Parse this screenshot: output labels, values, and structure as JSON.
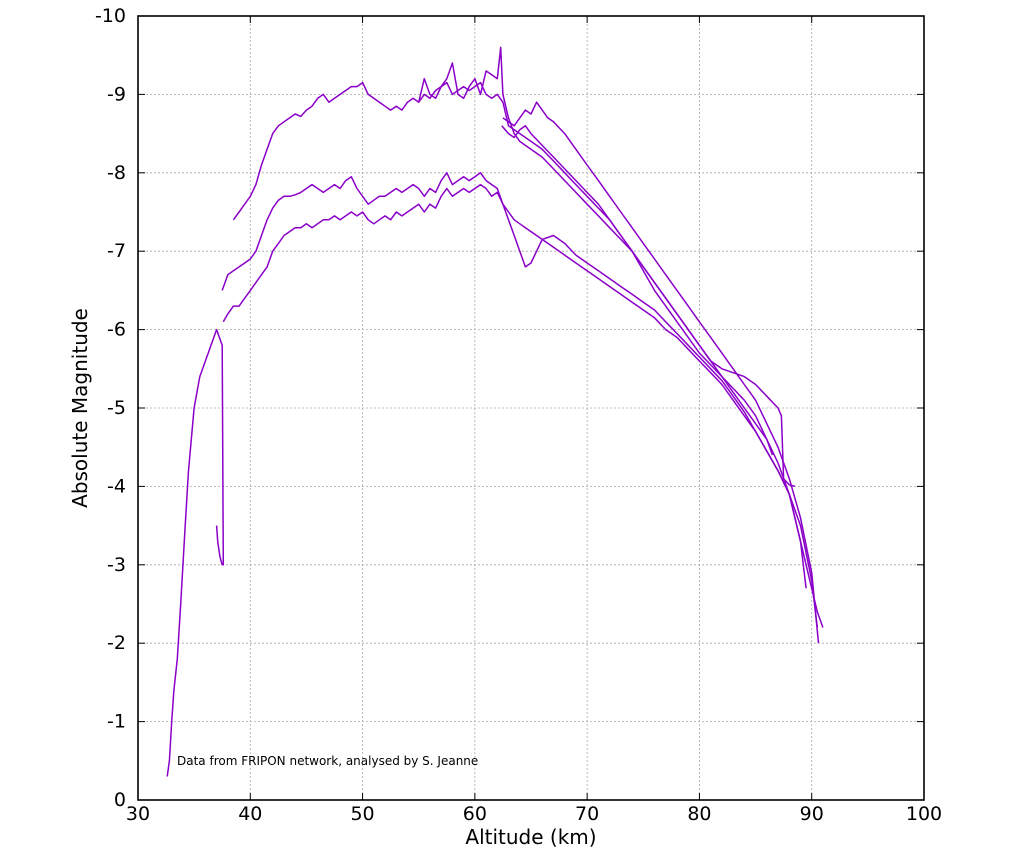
{
  "chart_data": {
    "type": "line",
    "title": "",
    "xlabel": "Altitude (km)",
    "ylabel": "Absolute Magnitude",
    "xlim": [
      30,
      100
    ],
    "ylim": [
      0,
      -10
    ],
    "x_ticks": [
      30,
      40,
      50,
      60,
      70,
      80,
      90,
      100
    ],
    "y_ticks": [
      0,
      -1,
      -2,
      -3,
      -4,
      -5,
      -6,
      -7,
      -8,
      -9,
      -10
    ],
    "x_tick_labels": [
      "30",
      "40",
      "50",
      "60",
      "70",
      "80",
      "90",
      "100"
    ],
    "y_tick_labels": [
      "0",
      "-1",
      "-2",
      "-3",
      "-4",
      "-5",
      "-6",
      "-7",
      "-8",
      "-9",
      "-10"
    ],
    "grid": true,
    "line_color": "#8b00c9",
    "annotation": "Data from FRIPON network, analysed by S. Jeanne",
    "series": [
      {
        "x": [
          32.6,
          32.8,
          33.0,
          33.2,
          33.5,
          33.8,
          34.2,
          34.5,
          35.0,
          35.5,
          36.0,
          36.5,
          37.0,
          37.5,
          37.6,
          37.5,
          37.3,
          37.1,
          37.0
        ],
        "y": [
          -0.3,
          -0.5,
          -1.0,
          -1.4,
          -1.8,
          -2.5,
          -3.5,
          -4.2,
          -5.0,
          -5.4,
          -5.6,
          -5.8,
          -6.0,
          -5.8,
          -3.0,
          -3.0,
          -3.1,
          -3.3,
          -3.5
        ]
      },
      {
        "x": [
          37.6,
          38.0,
          38.5,
          39.0,
          39.5,
          40.0,
          40.5,
          41.0,
          41.5,
          42.0,
          42.5,
          43.0,
          43.5,
          44.0,
          44.5,
          45.0,
          45.5,
          46.0,
          46.5,
          47.0,
          47.5,
          48.0,
          48.5,
          49.0,
          49.5,
          50.0,
          50.5,
          51.0,
          51.5,
          52.0,
          52.5,
          53.0,
          53.5,
          54.0,
          54.5,
          55.0,
          55.5,
          56.0,
          56.5,
          57.0,
          57.5,
          58.0,
          58.5,
          59.0,
          59.5,
          60.0,
          60.5,
          61.0,
          61.5,
          62.0,
          62.5,
          63.0,
          63.5,
          64.0,
          64.5,
          65.0,
          66.0,
          67.0,
          68.0,
          69.0,
          70.0,
          71.0,
          72.0,
          73.0,
          74.0,
          75.0,
          76.0,
          77.0,
          78.0,
          79.0,
          80.0,
          81.0,
          82.0,
          83.0,
          84.0,
          85.0,
          86.0,
          87.0,
          88.0,
          88.5,
          89.0,
          89.5,
          90.0,
          90.5,
          91.0
        ],
        "y": [
          -6.1,
          -6.2,
          -6.3,
          -6.3,
          -6.4,
          -6.5,
          -6.6,
          -6.7,
          -6.8,
          -7.0,
          -7.1,
          -7.2,
          -7.25,
          -7.3,
          -7.3,
          -7.35,
          -7.3,
          -7.35,
          -7.4,
          -7.4,
          -7.45,
          -7.4,
          -7.45,
          -7.5,
          -7.45,
          -7.5,
          -7.4,
          -7.35,
          -7.4,
          -7.45,
          -7.4,
          -7.5,
          -7.45,
          -7.5,
          -7.55,
          -7.6,
          -7.5,
          -7.6,
          -7.55,
          -7.7,
          -7.8,
          -7.7,
          -7.75,
          -7.8,
          -7.75,
          -7.8,
          -7.85,
          -7.8,
          -7.7,
          -7.75,
          -7.6,
          -7.5,
          -7.4,
          -7.35,
          -7.3,
          -7.25,
          -7.15,
          -7.05,
          -6.95,
          -6.85,
          -6.75,
          -6.65,
          -6.55,
          -6.45,
          -6.35,
          -6.25,
          -6.15,
          -6.0,
          -5.9,
          -5.75,
          -5.6,
          -5.45,
          -5.3,
          -5.1,
          -4.9,
          -4.7,
          -4.45,
          -4.2,
          -3.9,
          -3.6,
          -3.3,
          -3.0,
          -2.7,
          -2.4,
          -2.2
        ]
      },
      {
        "x": [
          37.5,
          38.0,
          38.5,
          39.0,
          39.5,
          40.0,
          40.5,
          41.0,
          41.5,
          42.0,
          42.5,
          43.0,
          43.5,
          44.0,
          44.5,
          45.0,
          45.5,
          46.0,
          46.5,
          47.0,
          47.5,
          48.0,
          48.5,
          49.0,
          49.5,
          50.0,
          50.5,
          51.0,
          51.5,
          52.0,
          52.5,
          53.0,
          53.5,
          54.0,
          54.5,
          55.0,
          55.5,
          56.0,
          56.5,
          57.0,
          57.5,
          58.0,
          58.5,
          59.0,
          59.5,
          60.0,
          60.5,
          61.0,
          61.5,
          62.0,
          62.5,
          63.0,
          63.5,
          64.0,
          64.5,
          65.0,
          66.0,
          67.0,
          68.0,
          69.0,
          70.0,
          71.0,
          72.0,
          73.0,
          74.0,
          75.0,
          76.0,
          77.0,
          78.0,
          79.0,
          80.0,
          81.0,
          82.0,
          83.0,
          84.0,
          85.0,
          86.0,
          87.0,
          88.0,
          89.0,
          90.0,
          90.5
        ],
        "y": [
          -6.5,
          -6.7,
          -6.75,
          -6.8,
          -6.85,
          -6.9,
          -7.0,
          -7.2,
          -7.4,
          -7.55,
          -7.65,
          -7.7,
          -7.7,
          -7.72,
          -7.75,
          -7.8,
          -7.85,
          -7.8,
          -7.75,
          -7.8,
          -7.85,
          -7.8,
          -7.9,
          -7.95,
          -7.8,
          -7.7,
          -7.6,
          -7.65,
          -7.7,
          -7.7,
          -7.75,
          -7.8,
          -7.75,
          -7.8,
          -7.85,
          -7.8,
          -7.7,
          -7.8,
          -7.75,
          -7.9,
          -8.0,
          -7.85,
          -7.9,
          -7.95,
          -7.9,
          -7.95,
          -8.0,
          -7.9,
          -7.85,
          -7.8,
          -7.6,
          -7.4,
          -7.2,
          -7.0,
          -6.8,
          -6.85,
          -7.15,
          -7.2,
          -7.1,
          -6.95,
          -6.85,
          -6.75,
          -6.65,
          -6.55,
          -6.45,
          -6.35,
          -6.25,
          -6.1,
          -5.95,
          -5.8,
          -5.65,
          -5.5,
          -5.35,
          -5.15,
          -4.95,
          -4.7,
          -4.45,
          -4.2,
          -3.9,
          -3.5,
          -2.8,
          -2.2
        ]
      },
      {
        "x": [
          38.5,
          39.0,
          39.5,
          40.0,
          40.5,
          41.0,
          41.5,
          42.0,
          42.5,
          43.0,
          43.5,
          44.0,
          44.5,
          45.0,
          45.5,
          46.0,
          46.5,
          47.0,
          47.5,
          48.0,
          48.5,
          49.0,
          49.5,
          50.0,
          50.5,
          51.0,
          51.5,
          52.0,
          52.5,
          53.0,
          53.5,
          54.0,
          54.5,
          55.0,
          55.5,
          56.0,
          56.5,
          57.0,
          57.5,
          58.0,
          58.5,
          59.0,
          59.5,
          60.0,
          60.5,
          61.0,
          61.5,
          62.0,
          62.5,
          63.0,
          63.5,
          64.0,
          64.5,
          65.0,
          66.0,
          67.0,
          68.0,
          69.0,
          70.0,
          71.0,
          72.0,
          73.0,
          74.0,
          75.0,
          76.0,
          77.0,
          78.0,
          79.0,
          80.0,
          81.0,
          82.0,
          83.0,
          84.0,
          85.0,
          86.0,
          86.5
        ],
        "y": [
          -7.4,
          -7.5,
          -7.6,
          -7.7,
          -7.85,
          -8.1,
          -8.3,
          -8.5,
          -8.6,
          -8.65,
          -8.7,
          -8.75,
          -8.72,
          -8.8,
          -8.85,
          -8.95,
          -9.0,
          -8.9,
          -8.95,
          -9.0,
          -9.05,
          -9.1,
          -9.1,
          -9.15,
          -9.0,
          -8.95,
          -8.9,
          -8.85,
          -8.8,
          -8.85,
          -8.8,
          -8.9,
          -8.95,
          -8.9,
          -9.0,
          -8.95,
          -9.05,
          -9.1,
          -9.15,
          -9.0,
          -9.05,
          -9.1,
          -9.05,
          -9.1,
          -9.15,
          -9.0,
          -8.95,
          -9.0,
          -8.9,
          -8.6,
          -8.55,
          -8.5,
          -8.45,
          -8.4,
          -8.3,
          -8.15,
          -8.0,
          -7.85,
          -7.7,
          -7.55,
          -7.4,
          -7.2,
          -7.0,
          -6.8,
          -6.6,
          -6.4,
          -6.2,
          -6.0,
          -5.8,
          -5.6,
          -5.4,
          -5.2,
          -5.0,
          -4.8,
          -4.6,
          -4.4
        ]
      },
      {
        "x": [
          55.0,
          55.5,
          56.0,
          56.5,
          57.0,
          57.5,
          58.0,
          58.5,
          59.0,
          59.5,
          60.0,
          60.5,
          61.0,
          61.5,
          62.0,
          62.3,
          62.5,
          63.0,
          63.5,
          64.0,
          64.5,
          65.0,
          66.0,
          67.0,
          68.0,
          69.0,
          70.0,
          71.0,
          72.0,
          73.0,
          74.0,
          75.0,
          76.0,
          77.0,
          78.0,
          79.0,
          80.0,
          81.0,
          82.0,
          83.0,
          84.0,
          85.0,
          86.0,
          87.0,
          87.3,
          87.5,
          87.8,
          88.0,
          88.5
        ],
        "y": [
          -8.9,
          -9.2,
          -9.0,
          -8.95,
          -9.1,
          -9.2,
          -9.4,
          -9.0,
          -8.95,
          -9.1,
          -9.2,
          -9.0,
          -9.3,
          -9.25,
          -9.2,
          -9.6,
          -9.0,
          -8.7,
          -8.5,
          -8.4,
          -8.35,
          -8.3,
          -8.2,
          -8.05,
          -7.9,
          -7.75,
          -7.6,
          -7.45,
          -7.3,
          -7.15,
          -7.0,
          -6.8,
          -6.6,
          -6.4,
          -6.2,
          -6.0,
          -5.8,
          -5.6,
          -5.5,
          -5.45,
          -5.4,
          -5.3,
          -5.15,
          -5.0,
          -4.9,
          -4.1,
          -4.05,
          -4.02,
          -4.0
        ]
      },
      {
        "x": [
          62.5,
          63.0,
          63.5,
          64.0,
          64.5,
          65.0,
          65.5,
          66.0,
          66.5,
          67.0,
          68.0,
          69.0,
          70.0,
          71.0,
          72.0,
          73.0,
          74.0,
          75.0,
          76.0,
          77.0,
          78.0,
          79.0,
          80.0,
          81.0,
          82.0,
          83.0,
          84.0,
          85.0,
          86.0,
          87.0,
          88.0,
          89.0,
          90.0,
          90.6
        ],
        "y": [
          -8.7,
          -8.65,
          -8.6,
          -8.7,
          -8.8,
          -8.75,
          -8.9,
          -8.8,
          -8.7,
          -8.65,
          -8.5,
          -8.3,
          -8.1,
          -7.9,
          -7.7,
          -7.5,
          -7.3,
          -7.1,
          -6.9,
          -6.7,
          -6.5,
          -6.3,
          -6.1,
          -5.9,
          -5.7,
          -5.5,
          -5.3,
          -5.1,
          -4.8,
          -4.5,
          -4.1,
          -3.6,
          -2.9,
          -2.0
        ]
      },
      {
        "x": [
          62.4,
          63.0,
          63.5,
          64.0,
          64.5,
          65.0,
          66.0,
          67.0,
          68.0,
          69.0,
          70.0,
          71.0,
          72.0,
          73.0,
          74.0,
          75.0,
          76.0,
          77.0,
          78.0,
          79.0,
          80.0,
          81.0,
          82.0,
          83.0,
          84.0,
          85.0,
          86.0,
          87.0,
          88.0,
          89.0,
          89.5
        ],
        "y": [
          -8.6,
          -8.5,
          -8.45,
          -8.55,
          -8.6,
          -8.5,
          -8.35,
          -8.2,
          -8.05,
          -7.9,
          -7.75,
          -7.6,
          -7.4,
          -7.2,
          -7.0,
          -6.75,
          -6.5,
          -6.3,
          -6.1,
          -5.9,
          -5.7,
          -5.55,
          -5.4,
          -5.25,
          -5.1,
          -4.9,
          -4.6,
          -4.3,
          -3.9,
          -3.3,
          -2.7
        ]
      }
    ]
  }
}
